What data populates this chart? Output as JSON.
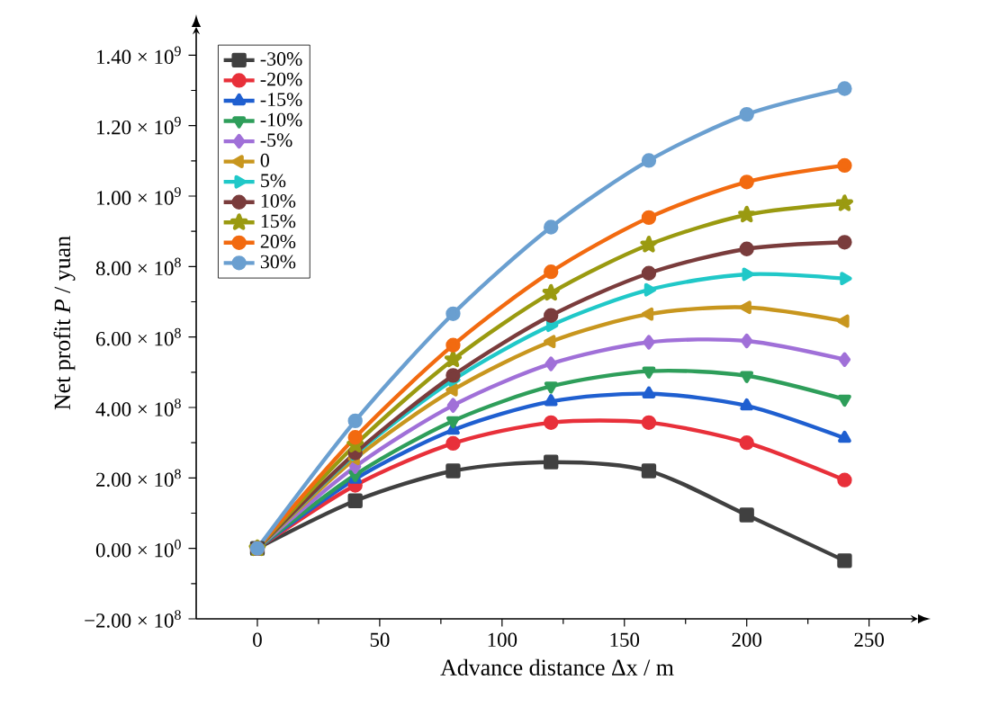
{
  "chart_data": {
    "type": "line",
    "xlabel": "Advance distance Δx / m",
    "ylabel": "Net profit *P* / yuan",
    "xlim": [
      -25,
      270
    ],
    "ylim": [
      -200000000.0,
      1480000000.0
    ],
    "xticks": [
      0,
      50,
      100,
      150,
      200,
      250
    ],
    "yticks": [
      {
        "value": -200000000.0,
        "label": "−2.00 × 10$^{8}$"
      },
      {
        "value": 0,
        "label": "0.00 × 10$^{0}$"
      },
      {
        "value": 200000000.0,
        "label": "2.00 × 10$^{8}$"
      },
      {
        "value": 400000000.0,
        "label": "4.00 × 10$^{8}$"
      },
      {
        "value": 600000000.0,
        "label": "6.00 × 10$^{8}$"
      },
      {
        "value": 800000000.0,
        "label": "8.00 × 10$^{8}$"
      },
      {
        "value": 1000000000.0,
        "label": "1.00 × 10$^{9}$"
      },
      {
        "value": 1200000000.0,
        "label": "1.20 × 10$^{9}$"
      },
      {
        "value": 1400000000.0,
        "label": "1.40 × 10$^{9}$"
      }
    ],
    "x": [
      0,
      40,
      80,
      120,
      160,
      200,
      240
    ],
    "legend": "top left",
    "grid": false,
    "line_style": "solid",
    "series": [
      {
        "name": "-30%",
        "color": "#404040",
        "marker": "square",
        "values": [
          0,
          135000000.0,
          220000000.0,
          245000000.0,
          220000000.0,
          95000000.0,
          -35000000.0
        ]
      },
      {
        "name": "-20%",
        "color": "#e8303a",
        "marker": "circle",
        "values": [
          0,
          179000000.0,
          298000000.0,
          357000000.0,
          357000000.0,
          300000000.0,
          194000000.0
        ]
      },
      {
        "name": "-15%",
        "color": "#1f5fd0",
        "marker": "triangle",
        "values": [
          0,
          197000000.0,
          336000000.0,
          417000000.0,
          439000000.0,
          405000000.0,
          313000000.0
        ]
      },
      {
        "name": "-10%",
        "color": "#2e9e5a",
        "marker": "triangle down",
        "values": [
          0,
          209000000.0,
          362000000.0,
          460000000.0,
          503000000.0,
          490000000.0,
          423000000.0
        ]
      },
      {
        "name": "-5%",
        "color": "#a070d8",
        "marker": "diamond",
        "values": [
          0,
          232000000.0,
          406000000.0,
          524000000.0,
          585000000.0,
          589000000.0,
          536000000.0
        ]
      },
      {
        "name": "0",
        "color": "#c8961e",
        "marker": "triangle left",
        "values": [
          0,
          255000000.0,
          450000000.0,
          587000000.0,
          665000000.0,
          684000000.0,
          645000000.0
        ]
      },
      {
        "name": "5%",
        "color": "#20c8c8",
        "marker": "triangle right",
        "values": [
          0,
          267000000.0,
          478000000.0,
          633000000.0,
          734000000.0,
          778000000.0,
          766000000.0
        ]
      },
      {
        "name": "10%",
        "color": "#7a3c3c",
        "marker": "circle",
        "values": [
          0,
          271000000.0,
          491000000.0,
          661000000.0,
          781000000.0,
          850000000.0,
          869000000.0
        ]
      },
      {
        "name": "15%",
        "color": "#9a9a10",
        "marker": "star",
        "values": [
          0,
          294000000.0,
          536000000.0,
          725000000.0,
          862000000.0,
          947000000.0,
          979000000.0
        ]
      },
      {
        "name": "20%",
        "color": "#f26a10",
        "marker": "circle",
        "values": [
          0,
          315000000.0,
          577000000.0,
          785000000.0,
          939000000.0,
          1040000000.0,
          1087000000.0
        ]
      },
      {
        "name": "30%",
        "color": "#6a9fd0",
        "marker": "circle",
        "values": [
          0,
          362000000.0,
          666000000.0,
          912000000.0,
          1101000000.0,
          1232000000.0,
          1305000000.0
        ]
      }
    ]
  }
}
